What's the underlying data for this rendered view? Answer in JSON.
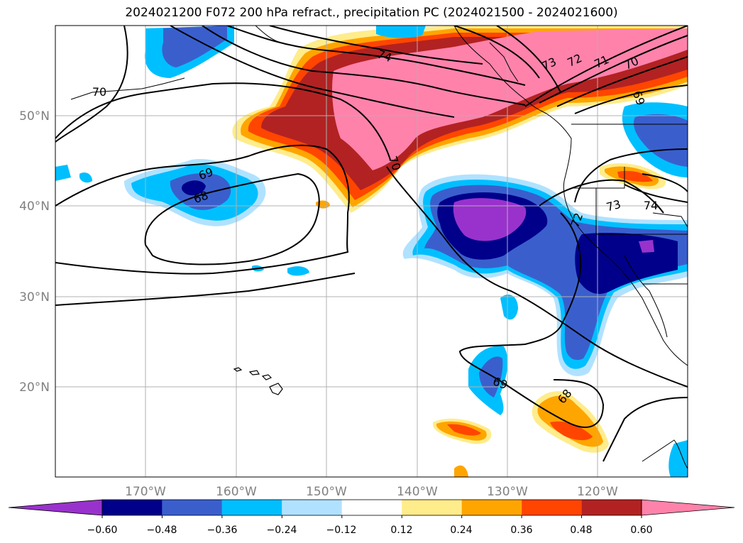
{
  "title": "2024021200 F072 200 hPa refract., precipitation PC (2024021500 - 2024021600)",
  "longitude_labels": [
    "170°W",
    "160°W",
    "150°W",
    "140°W",
    "130°W",
    "120°W"
  ],
  "latitude_labels": [
    "50°N",
    "40°N",
    "30°N",
    "20°N"
  ],
  "colorbar": {
    "colors": [
      "#9932cc",
      "#00008b",
      "#3a5fcd",
      "#00bfff",
      "#b0e2ff",
      "#ffffff",
      "#ffec8b",
      "#ffa500",
      "#ff4500",
      "#b22222",
      "#ff82ab"
    ],
    "tick_labels": [
      "−0.60",
      "−0.48",
      "−0.36",
      "−0.24",
      "−0.12",
      "0.12",
      "0.24",
      "0.36",
      "0.48",
      "0.60"
    ]
  },
  "contour_labels": [
    "70",
    "74",
    "69",
    "68",
    "70",
    "73",
    "72",
    "71",
    "70",
    "69",
    "73",
    "74",
    "72",
    "69",
    "68"
  ]
}
